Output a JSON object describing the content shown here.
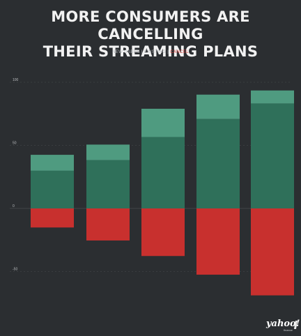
{
  "header": {
    "title_line1": "MORE CONSUMERS ARE CANCELLING",
    "title_line2": "THEIR STREAMING PLANS",
    "legend_prefix": "NEW USERS | EXISTING | ",
    "legend_cancel": "CANCEL"
  },
  "axis_title": "",
  "source": "",
  "brand": {
    "name": "yahoo!",
    "sub": "finance"
  },
  "colors": {
    "background": "#2b2e31",
    "new_users": "#4f9b80",
    "existing": "#2f705a",
    "cancel": "#c8302e",
    "label": "#e6efe9",
    "grid": "#4a4d50"
  },
  "chart_data": {
    "type": "bar",
    "categories": [
      "",
      "",
      "",
      "",
      ""
    ],
    "y_ticks": [
      {
        "value": 100,
        "label": "100"
      },
      {
        "value": 50,
        "label": "50"
      },
      {
        "value": 0,
        "label": "0"
      },
      {
        "value": -50,
        "label": "-50"
      }
    ],
    "ylim": [
      -70,
      100
    ],
    "grid": true,
    "series": [
      {
        "name": "NEW USERS",
        "color": "#4f9b80",
        "values": [
          12.6,
          12.3,
          22.4,
          19.3,
          10.3
        ],
        "labels": [
          "",
          "",
          "",
          "",
          ""
        ]
      },
      {
        "name": "EXISTING",
        "color": "#2f705a",
        "values": [
          29.9,
          38.3,
          56.6,
          70.9,
          83.2
        ],
        "labels": [
          "",
          "",
          "",
          "",
          ""
        ]
      },
      {
        "name": "CANCEL",
        "color": "#c8302e",
        "values": [
          -15.1,
          -25.4,
          -37.7,
          -52.5,
          -68.9
        ],
        "labels": [
          "",
          "",
          "",
          "",
          ""
        ]
      }
    ]
  }
}
